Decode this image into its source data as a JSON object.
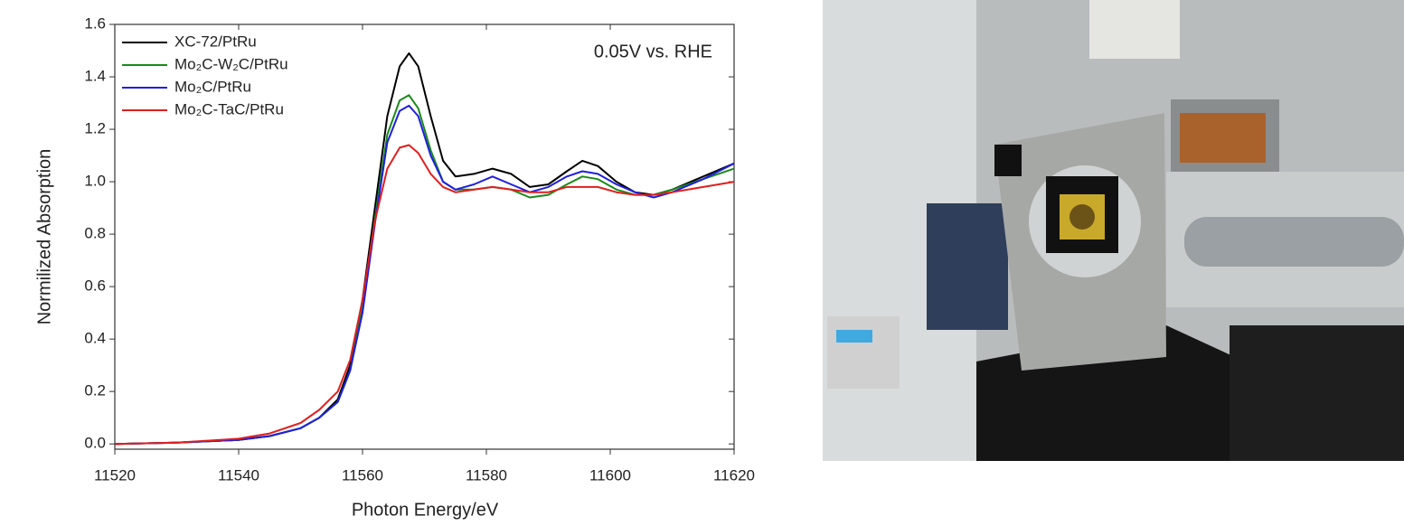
{
  "chart_data": {
    "type": "line",
    "xlabel": "Photon Energy/eV",
    "ylabel": "Normilized Absorption",
    "annotation": "0.05V vs. RHE",
    "x": [
      11520,
      11530,
      11540,
      11545,
      11550,
      11553,
      11556,
      11558,
      11560,
      11562,
      11564,
      11566,
      11567.5,
      11569,
      11571,
      11573,
      11575,
      11578,
      11581,
      11584,
      11587,
      11590,
      11593,
      11595.5,
      11598,
      11601,
      11604,
      11607,
      11610,
      11615,
      11620
    ],
    "series": [
      {
        "name": "XC-72/PtRu",
        "color": "#000000",
        "values": [
          0,
          0.005,
          0.015,
          0.03,
          0.06,
          0.1,
          0.17,
          0.3,
          0.55,
          0.9,
          1.25,
          1.44,
          1.49,
          1.44,
          1.25,
          1.08,
          1.02,
          1.03,
          1.05,
          1.03,
          0.98,
          0.99,
          1.04,
          1.08,
          1.06,
          1.0,
          0.96,
          0.95,
          0.97,
          1.02,
          1.07
        ]
      },
      {
        "name": "Mo₂C-W₂C/PtRu",
        "color": "#1a8a1a",
        "values": [
          0,
          0.005,
          0.015,
          0.03,
          0.06,
          0.1,
          0.16,
          0.28,
          0.52,
          0.86,
          1.18,
          1.31,
          1.33,
          1.28,
          1.12,
          1.0,
          0.97,
          0.97,
          0.98,
          0.97,
          0.94,
          0.95,
          0.99,
          1.02,
          1.01,
          0.97,
          0.95,
          0.95,
          0.97,
          1.01,
          1.05
        ]
      },
      {
        "name": "Mo₂C/PtRu",
        "color": "#1f1fe0",
        "values": [
          0,
          0.005,
          0.015,
          0.03,
          0.06,
          0.1,
          0.16,
          0.28,
          0.5,
          0.84,
          1.15,
          1.27,
          1.29,
          1.25,
          1.1,
          1.0,
          0.97,
          0.99,
          1.02,
          0.99,
          0.96,
          0.98,
          1.02,
          1.04,
          1.03,
          0.99,
          0.96,
          0.94,
          0.96,
          1.01,
          1.07
        ]
      },
      {
        "name": "Mo₂C-TaC/PtRu",
        "color": "#e01f1f",
        "values": [
          0,
          0.005,
          0.02,
          0.04,
          0.08,
          0.13,
          0.2,
          0.32,
          0.55,
          0.85,
          1.05,
          1.13,
          1.14,
          1.11,
          1.03,
          0.98,
          0.96,
          0.97,
          0.98,
          0.97,
          0.96,
          0.96,
          0.98,
          0.98,
          0.98,
          0.96,
          0.95,
          0.95,
          0.96,
          0.98,
          1.0
        ]
      }
    ],
    "xlim": [
      11520,
      11620
    ],
    "xticks": [
      11520,
      11540,
      11560,
      11580,
      11600,
      11620
    ],
    "ylim": [
      -0.02,
      1.6
    ],
    "yticks": [
      {
        "value": 0,
        "label": "0.0"
      },
      0.2,
      0.4,
      0.6,
      0.8,
      {
        "value": 1,
        "label": "1.0"
      },
      1.2,
      1.4,
      1.6
    ],
    "legend": "upper left",
    "grid": false
  }
}
